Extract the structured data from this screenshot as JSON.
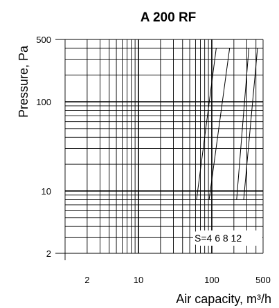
{
  "chart_data": {
    "type": "line",
    "title": "A 200 RF",
    "xlabel": "Air capacity, m³/h",
    "ylabel": "Pressure, Pa",
    "xscale": "log",
    "yscale": "log",
    "xlim": [
      1,
      500
    ],
    "ylim": [
      2,
      500
    ],
    "xticks": [
      2,
      10,
      100,
      500
    ],
    "yticks": [
      2,
      10,
      100,
      500
    ],
    "grid": true,
    "series": [
      {
        "name": "S=4",
        "points": [
          [
            62,
            8
          ],
          [
            115,
            400
          ]
        ]
      },
      {
        "name": "6",
        "points": [
          [
            92,
            8
          ],
          [
            175,
            400
          ]
        ]
      },
      {
        "name": "8",
        "points": [
          [
            218,
            8
          ],
          [
            320,
            400
          ]
        ]
      },
      {
        "name": "12",
        "points": [
          [
            272,
            8
          ],
          [
            420,
            400
          ]
        ]
      }
    ],
    "legend_text": [
      "S=4",
      "6",
      "8",
      "12"
    ]
  }
}
